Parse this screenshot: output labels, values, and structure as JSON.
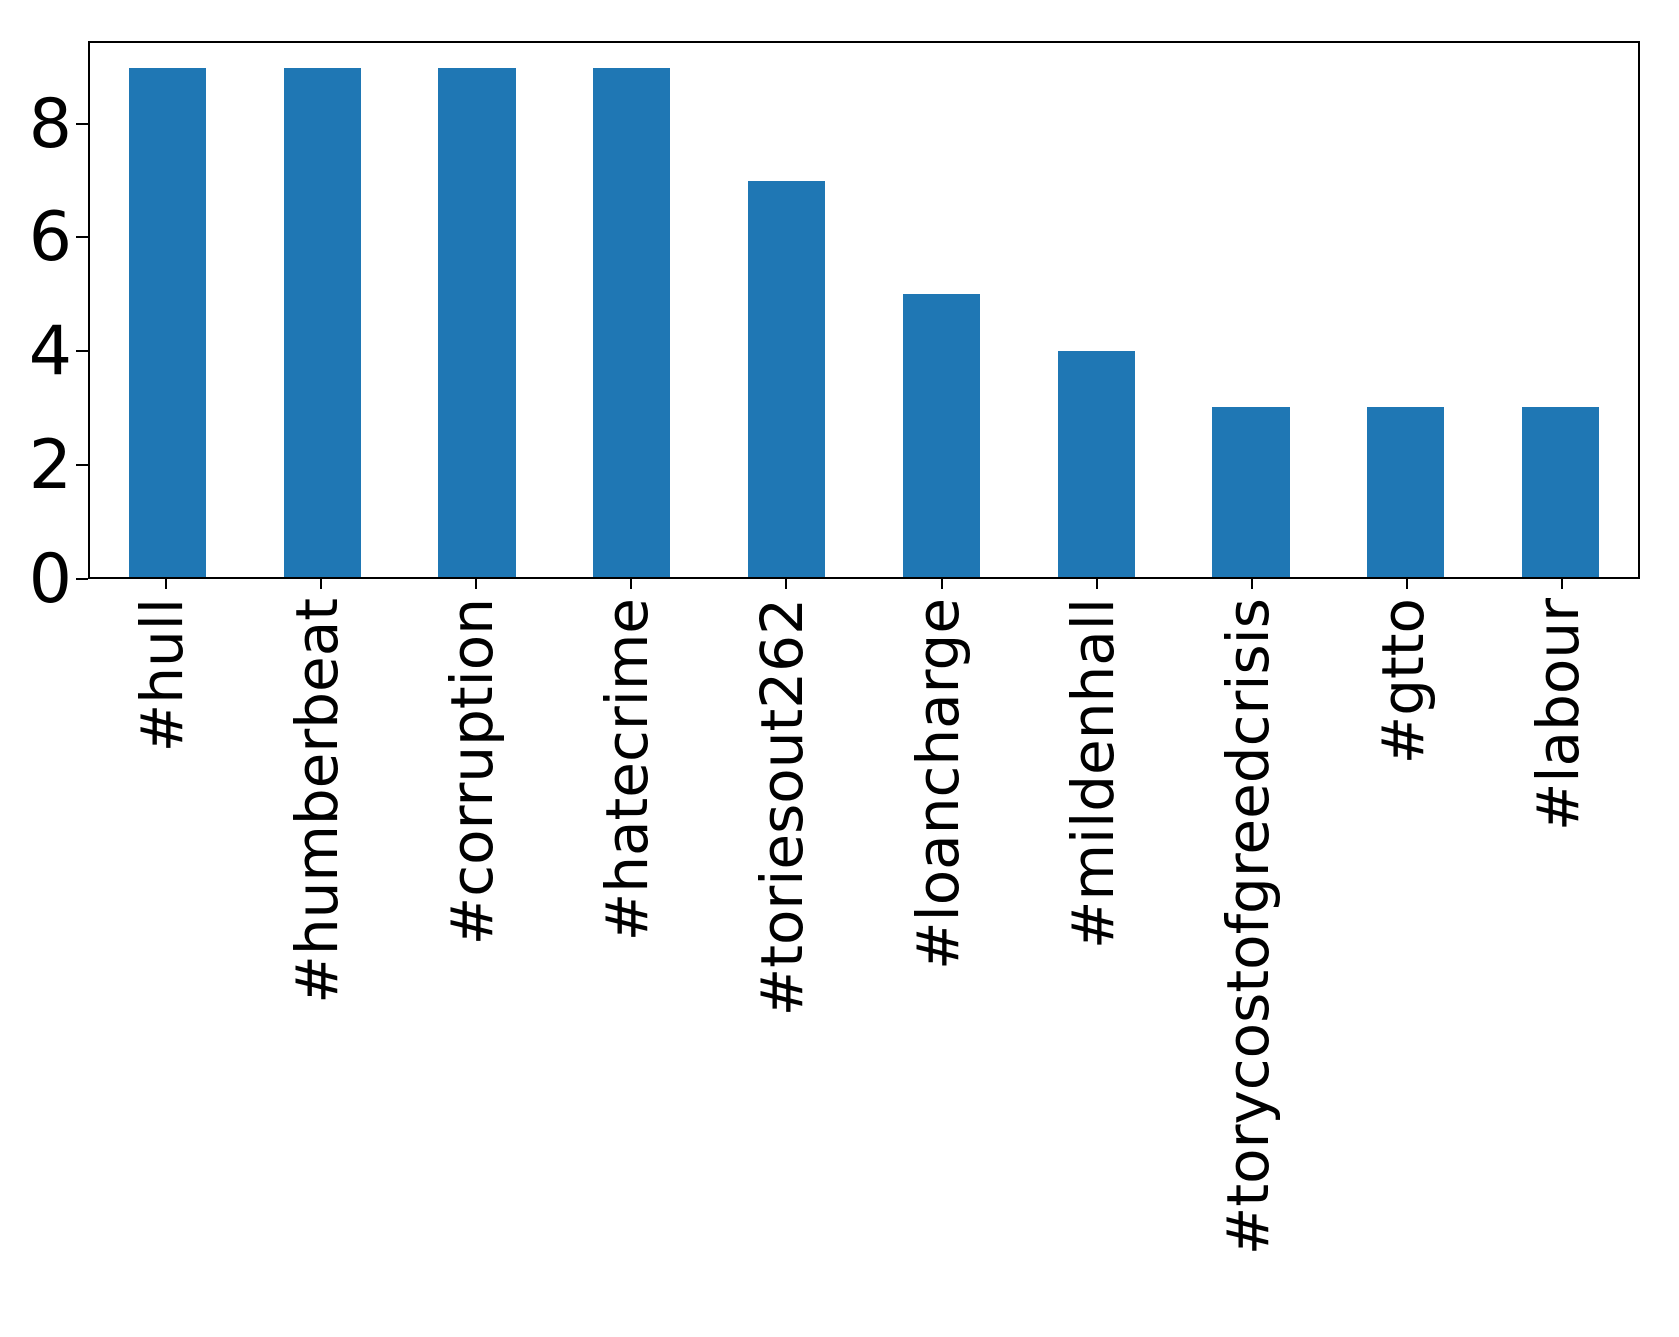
{
  "chart_data": {
    "type": "bar",
    "categories": [
      "#hull",
      "#humberbeat",
      "#corruption",
      "#hatecrime",
      "#toriesout262",
      "#loancharge",
      "#mildenhall",
      "#torycostofgreedcrisis",
      "#gtto",
      "#labour"
    ],
    "values": [
      9,
      9,
      9,
      9,
      7,
      5,
      4,
      3,
      3,
      3
    ],
    "title": "",
    "xlabel": "",
    "ylabel": "",
    "yticks": [
      0,
      2,
      4,
      6,
      8
    ],
    "ylim": [
      0,
      9.45
    ],
    "xtick_rotation_degrees": 90,
    "grid": false,
    "legend": null,
    "bar_color": "#1f77b4",
    "bar_width_fraction": 0.5,
    "axis_color": "#000000",
    "text_color": "#000000",
    "background_color": "#ffffff"
  }
}
